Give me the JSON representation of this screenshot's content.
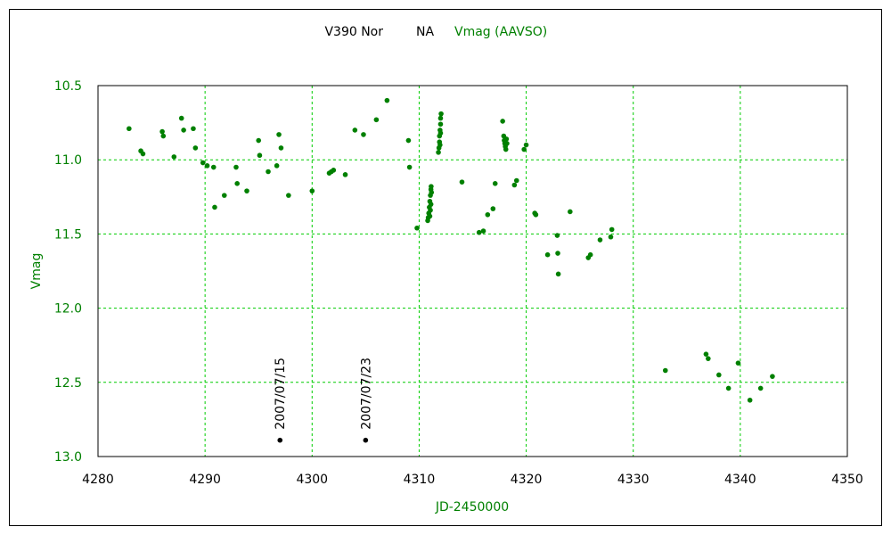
{
  "chart_data": {
    "type": "scatter",
    "title": "V390 Nor",
    "title_note": "NA",
    "title_series": "Vmag (AAVSO)",
    "xlabel": "JD-2450000",
    "ylabel": "Vmag",
    "xlim": [
      4280,
      4350
    ],
    "ylim": [
      10.5,
      13.0
    ],
    "y_inverted": true,
    "grid": true,
    "x_ticks": [
      4280,
      4290,
      4300,
      4310,
      4320,
      4330,
      4340,
      4350
    ],
    "y_ticks": [
      10.5,
      11.0,
      11.5,
      12.0,
      12.5,
      13.0
    ],
    "x_tick_labels": [
      "4280",
      "4290",
      "4300",
      "4310",
      "4320",
      "4330",
      "4340",
      "4350"
    ],
    "y_tick_labels": [
      "10.5",
      "11.0",
      "11.5",
      "12.0",
      "12.5",
      "13.0"
    ],
    "colors": {
      "series": "#008000",
      "grid": "#00cc00",
      "label": "#008000",
      "marker": "#000000"
    },
    "series": [
      {
        "name": "Vmag (AAVSO)",
        "points": [
          [
            4282.9,
            10.79
          ],
          [
            4284.0,
            10.94
          ],
          [
            4284.2,
            10.96
          ],
          [
            4286.0,
            10.81
          ],
          [
            4286.1,
            10.84
          ],
          [
            4287.1,
            10.98
          ],
          [
            4287.8,
            10.72
          ],
          [
            4288.0,
            10.8
          ],
          [
            4288.9,
            10.79
          ],
          [
            4289.1,
            10.92
          ],
          [
            4289.8,
            11.02
          ],
          [
            4290.2,
            11.04
          ],
          [
            4290.8,
            11.05
          ],
          [
            4290.9,
            11.32
          ],
          [
            4291.8,
            11.24
          ],
          [
            4292.9,
            11.05
          ],
          [
            4293.0,
            11.16
          ],
          [
            4293.9,
            11.21
          ],
          [
            4295.0,
            10.87
          ],
          [
            4295.1,
            10.97
          ],
          [
            4295.9,
            11.08
          ],
          [
            4296.7,
            11.04
          ],
          [
            4296.9,
            10.83
          ],
          [
            4297.1,
            10.92
          ],
          [
            4297.8,
            11.24
          ],
          [
            4300.0,
            11.21
          ],
          [
            4301.6,
            11.09
          ],
          [
            4301.8,
            11.08
          ],
          [
            4302.0,
            11.07
          ],
          [
            4303.1,
            11.1
          ],
          [
            4304.0,
            10.8
          ],
          [
            4304.8,
            10.83
          ],
          [
            4306.0,
            10.73
          ],
          [
            4307.0,
            10.6
          ],
          [
            4309.0,
            10.87
          ],
          [
            4309.1,
            11.05
          ],
          [
            4309.8,
            11.46
          ],
          [
            4310.8,
            11.41
          ],
          [
            4310.85,
            11.39
          ],
          [
            4310.9,
            11.36
          ],
          [
            4310.95,
            11.32
          ],
          [
            4311.0,
            11.28
          ],
          [
            4311.05,
            11.24
          ],
          [
            4311.1,
            11.2
          ],
          [
            4311.12,
            11.18
          ],
          [
            4311.0,
            11.38
          ],
          [
            4311.05,
            11.34
          ],
          [
            4311.1,
            11.3
          ],
          [
            4311.15,
            11.22
          ],
          [
            4311.8,
            10.95
          ],
          [
            4311.85,
            10.92
          ],
          [
            4311.9,
            10.88
          ],
          [
            4311.9,
            10.84
          ],
          [
            4311.95,
            10.8
          ],
          [
            4312.0,
            10.76
          ],
          [
            4312.0,
            10.72
          ],
          [
            4312.05,
            10.69
          ],
          [
            4311.95,
            10.9
          ],
          [
            4312.0,
            10.82
          ],
          [
            4314.0,
            11.15
          ],
          [
            4315.6,
            11.49
          ],
          [
            4316.0,
            11.48
          ],
          [
            4316.4,
            11.37
          ],
          [
            4316.9,
            11.33
          ],
          [
            4317.1,
            11.16
          ],
          [
            4317.8,
            10.74
          ],
          [
            4317.9,
            10.84
          ],
          [
            4317.95,
            10.87
          ],
          [
            4318.0,
            10.89
          ],
          [
            4318.05,
            10.91
          ],
          [
            4318.1,
            10.93
          ],
          [
            4318.15,
            10.86
          ],
          [
            4318.2,
            10.89
          ],
          [
            4318.9,
            11.17
          ],
          [
            4319.1,
            11.14
          ],
          [
            4319.8,
            10.93
          ],
          [
            4320.0,
            10.9
          ],
          [
            4320.8,
            11.36
          ],
          [
            4320.9,
            11.37
          ],
          [
            4322.0,
            11.64
          ],
          [
            4322.9,
            11.51
          ],
          [
            4322.95,
            11.63
          ],
          [
            4323.0,
            11.77
          ],
          [
            4324.1,
            11.35
          ],
          [
            4325.8,
            11.66
          ],
          [
            4326.0,
            11.64
          ],
          [
            4326.9,
            11.54
          ],
          [
            4327.9,
            11.52
          ],
          [
            4328.0,
            11.47
          ],
          [
            4333.0,
            12.42
          ],
          [
            4336.8,
            12.31
          ],
          [
            4337.0,
            12.34
          ],
          [
            4338.0,
            12.45
          ],
          [
            4338.9,
            12.54
          ],
          [
            4339.8,
            12.37
          ],
          [
            4340.9,
            12.62
          ],
          [
            4341.9,
            12.54
          ],
          [
            4343.0,
            12.46
          ]
        ]
      }
    ],
    "annotations": [
      {
        "text": "2007/07/15",
        "x": 4297.0,
        "y": 12.89
      },
      {
        "text": "2007/07/23",
        "x": 4305.0,
        "y": 12.89
      }
    ]
  }
}
